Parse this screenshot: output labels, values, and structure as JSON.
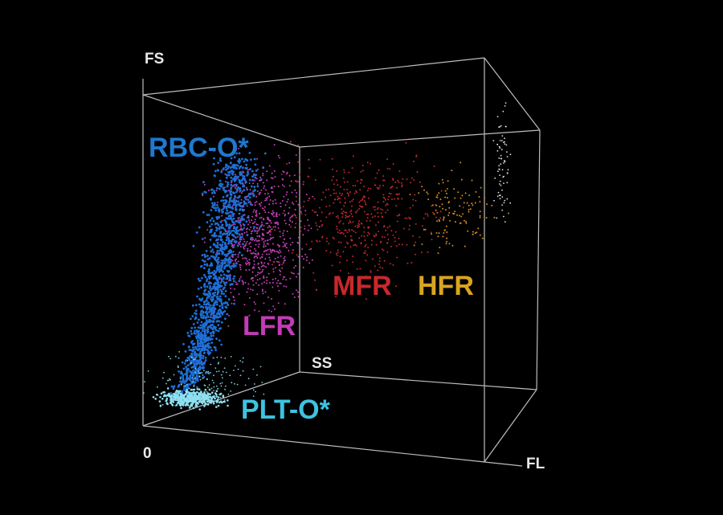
{
  "axes": {
    "vertical": "FS",
    "depth": "SS",
    "horizontal": "FL",
    "origin": "0"
  },
  "populations": {
    "rbc": "RBC-O*",
    "lfr": "LFR",
    "mfr": "MFR",
    "hfr": "HFR",
    "plt": "PLT-O*"
  }
}
